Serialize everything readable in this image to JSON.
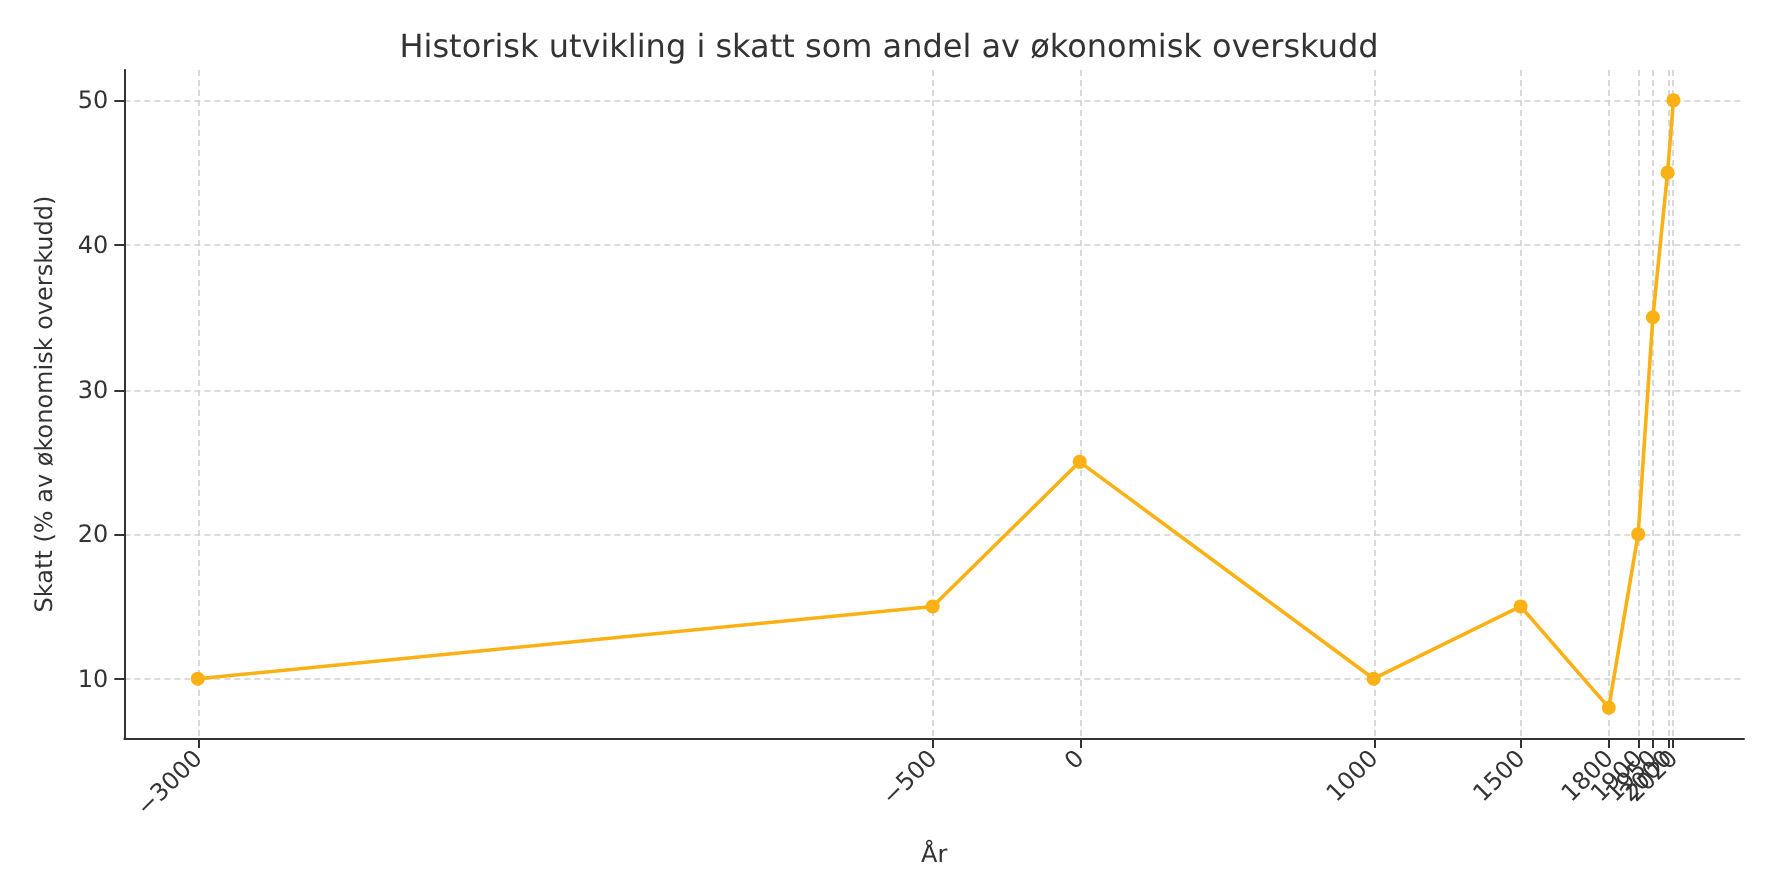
{
  "chart_data": {
    "type": "line",
    "title": "Historisk utvikling i skatt som andel av økonomisk overskudd",
    "xlabel": "År",
    "ylabel": "Skatt (% av økonomisk overskudd)",
    "x": [
      -3000,
      -500,
      0,
      1000,
      1500,
      1800,
      1900,
      1950,
      2000,
      2020
    ],
    "series": [
      {
        "color": "#f9b115",
        "values": [
          10,
          15,
          25,
          10,
          15,
          8,
          20,
          35,
          45,
          50
        ]
      }
    ],
    "xlim": [
      -3250,
      2260
    ],
    "ylim": [
      5.9,
      52.1
    ],
    "xticks": [
      {
        "value": -3000,
        "label": "−3000"
      },
      {
        "value": -500,
        "label": "−500"
      },
      0,
      1000,
      1500,
      1800,
      1900,
      1950,
      2000,
      2020
    ],
    "yticks": [
      10,
      20,
      30,
      40,
      50
    ],
    "grid": true,
    "marker": "circle",
    "line_style": "solid"
  }
}
